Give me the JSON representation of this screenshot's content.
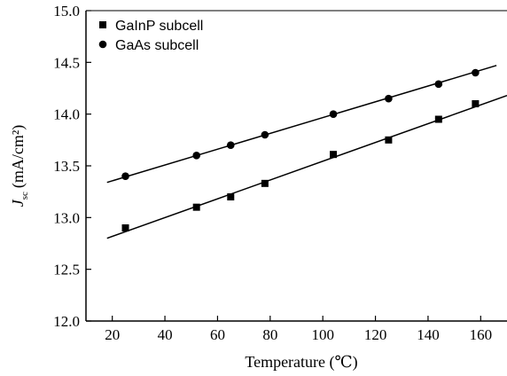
{
  "chart_data": {
    "type": "scatter",
    "title": "",
    "xlabel": "Temperature (℃)",
    "ylabel": "J_sc (mA/cm²)",
    "ylabel_parts": {
      "symbol": "J",
      "subscript": "sc",
      "unit": "(mA/cm²)"
    },
    "xlim": [
      10,
      170
    ],
    "ylim": [
      12.0,
      15.0
    ],
    "x_ticks": [
      20,
      40,
      60,
      80,
      100,
      120,
      140,
      160
    ],
    "y_ticks": [
      "12.0",
      "12.5",
      "13.0",
      "13.5",
      "14.0",
      "14.5",
      "15.0"
    ],
    "grid": false,
    "legend_position": "top-left",
    "series": [
      {
        "name": "GaInP subcell",
        "marker": "square",
        "x": [
          25,
          52,
          65,
          78,
          104,
          125,
          144,
          158
        ],
        "y": [
          12.9,
          13.1,
          13.2,
          13.33,
          13.61,
          13.75,
          13.95,
          14.1
        ],
        "fit": {
          "x": [
            18,
            170
          ],
          "y": [
            12.8,
            14.18
          ]
        }
      },
      {
        "name": "GaAs subcell",
        "marker": "circle",
        "x": [
          25,
          52,
          65,
          78,
          104,
          125,
          144,
          158
        ],
        "y": [
          13.4,
          13.6,
          13.7,
          13.8,
          14.0,
          14.15,
          14.29,
          14.4
        ],
        "fit": {
          "x": [
            18,
            166
          ],
          "y": [
            13.34,
            14.47
          ]
        }
      }
    ]
  }
}
